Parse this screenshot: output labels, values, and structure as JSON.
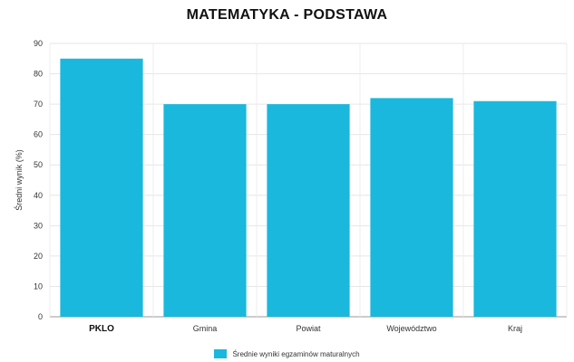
{
  "chart_data": {
    "type": "bar",
    "title": "MATEMATYKA - PODSTAWA",
    "ylabel": "Średni wynik (%)",
    "xlabel": "",
    "categories": [
      "PKLO",
      "Gmina",
      "Powiat",
      "Województwo",
      "Kraj"
    ],
    "series": [
      {
        "name": "Średnie wyniki egzaminów maturalnych",
        "values": [
          85,
          70,
          70,
          72,
          71
        ]
      }
    ],
    "ylim": [
      0,
      90
    ],
    "yticks": [
      0,
      10,
      20,
      30,
      40,
      50,
      60,
      70,
      80,
      90
    ],
    "grid": true,
    "legend_position": "bottom",
    "bar_color": "#1ab8dc"
  }
}
